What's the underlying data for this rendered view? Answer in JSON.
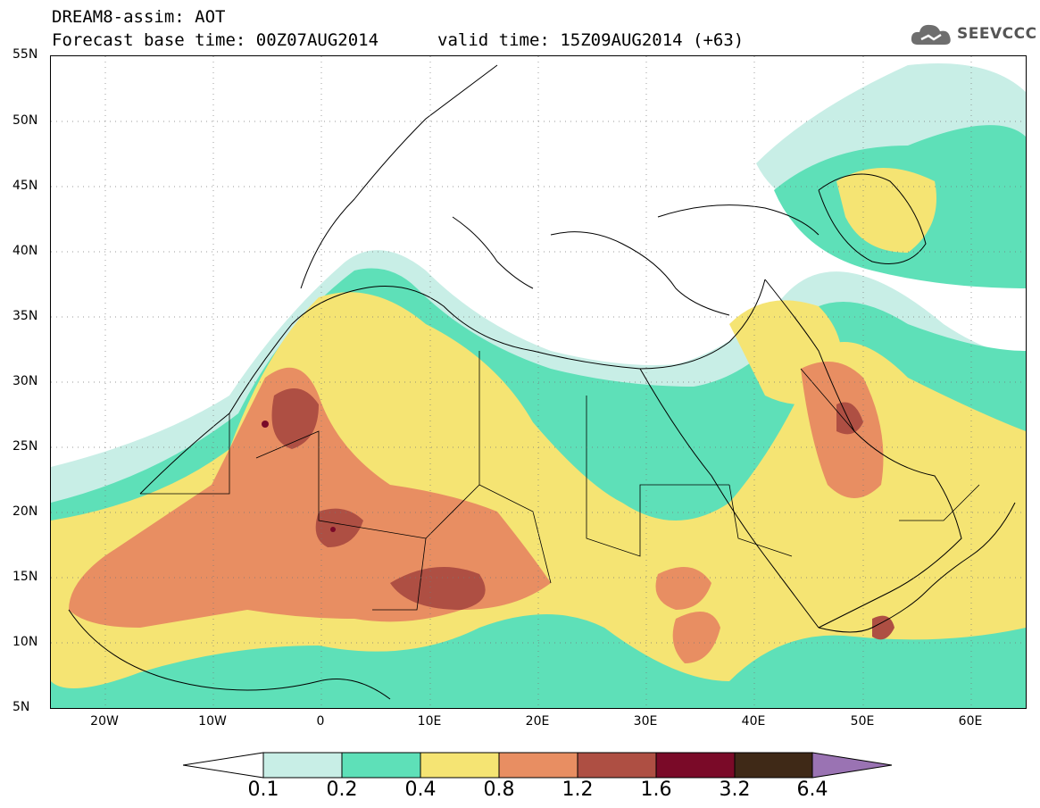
{
  "header": {
    "model_line": "DREAM8-assim: AOT",
    "base_time": "Forecast base time: 00Z07AUG2014",
    "valid_time": "valid time: 15Z09AUG2014 (+63)",
    "logo_text": "SEEVCCC",
    "logo_icon": "cloud-icon"
  },
  "map": {
    "lat_labels": [
      "55N",
      "50N",
      "45N",
      "40N",
      "35N",
      "30N",
      "25N",
      "20N",
      "15N",
      "10N",
      "5N"
    ],
    "lon_labels": [
      "20W",
      "10W",
      "0",
      "10E",
      "20E",
      "30E",
      "40E",
      "50E",
      "60E"
    ],
    "lat_range": [
      5,
      55
    ],
    "lon_range": [
      -25,
      65
    ],
    "grid": "dotted"
  },
  "colorbar": {
    "labels": [
      "0.1",
      "0.2",
      "0.4",
      "0.8",
      "1.2",
      "1.6",
      "3.2",
      "6.4"
    ],
    "colors": [
      "#ffffff",
      "#c8eee6",
      "#5ee0b8",
      "#f5e473",
      "#e88e62",
      "#ae4f43",
      "#7a0a28",
      "#3f2917",
      "#9a73b3"
    ]
  }
}
